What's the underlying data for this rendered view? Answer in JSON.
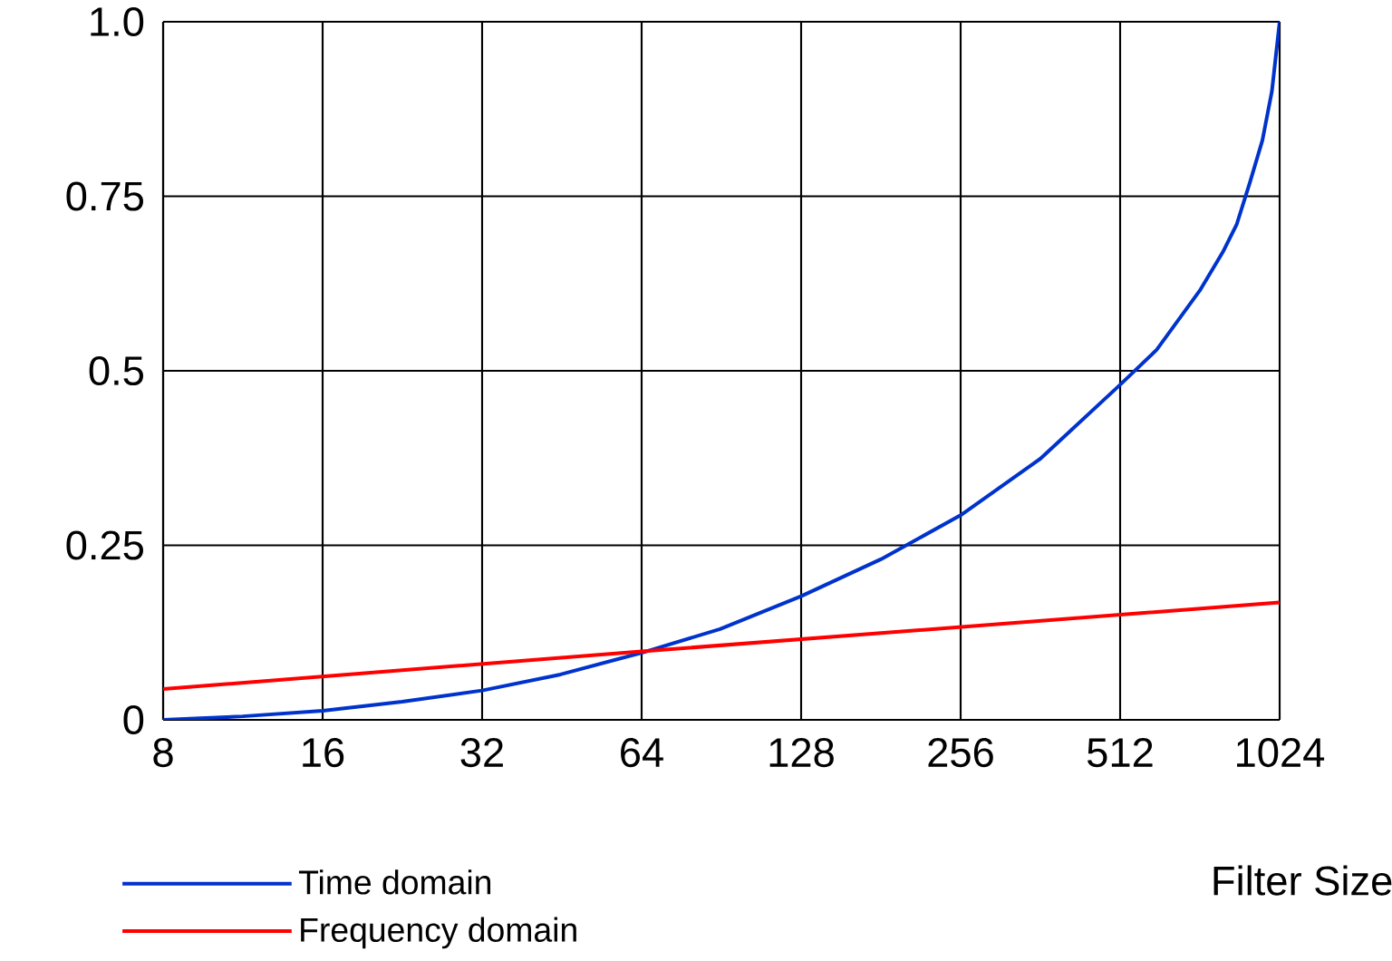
{
  "chart_data": {
    "type": "line",
    "xlabel": "Filter Size",
    "log": "x",
    "grid": true,
    "legend": "bottom left",
    "marker": "none",
    "line_style": "solid",
    "xlim": [
      8,
      1024
    ],
    "ylim": [
      0,
      1
    ],
    "xticks": [
      8,
      16,
      32,
      64,
      128,
      256,
      512,
      1024
    ],
    "yticks": [
      0,
      0.25,
      0.5,
      0.75,
      {
        "value": 1,
        "label": "1.0"
      }
    ],
    "series": [
      {
        "name": "Time domain",
        "color": "#0033cc",
        "x": [
          8,
          11.3,
          16,
          22.6,
          32,
          45,
          64,
          90,
          128,
          181,
          256,
          362,
          512,
          600,
          724,
          800,
          850,
          900,
          950,
          990,
          1024
        ],
        "values": [
          0,
          0.005,
          0.013,
          0.026,
          0.042,
          0.065,
          0.096,
          0.13,
          0.177,
          0.23,
          0.293,
          0.374,
          0.48,
          0.53,
          0.615,
          0.67,
          0.71,
          0.77,
          0.83,
          0.9,
          1.0
        ]
      },
      {
        "name": "Frequency domain",
        "color": "#ff0000",
        "x": [
          8,
          64,
          1024
        ],
        "values": [
          0.044,
          0.098,
          0.168
        ]
      }
    ]
  }
}
